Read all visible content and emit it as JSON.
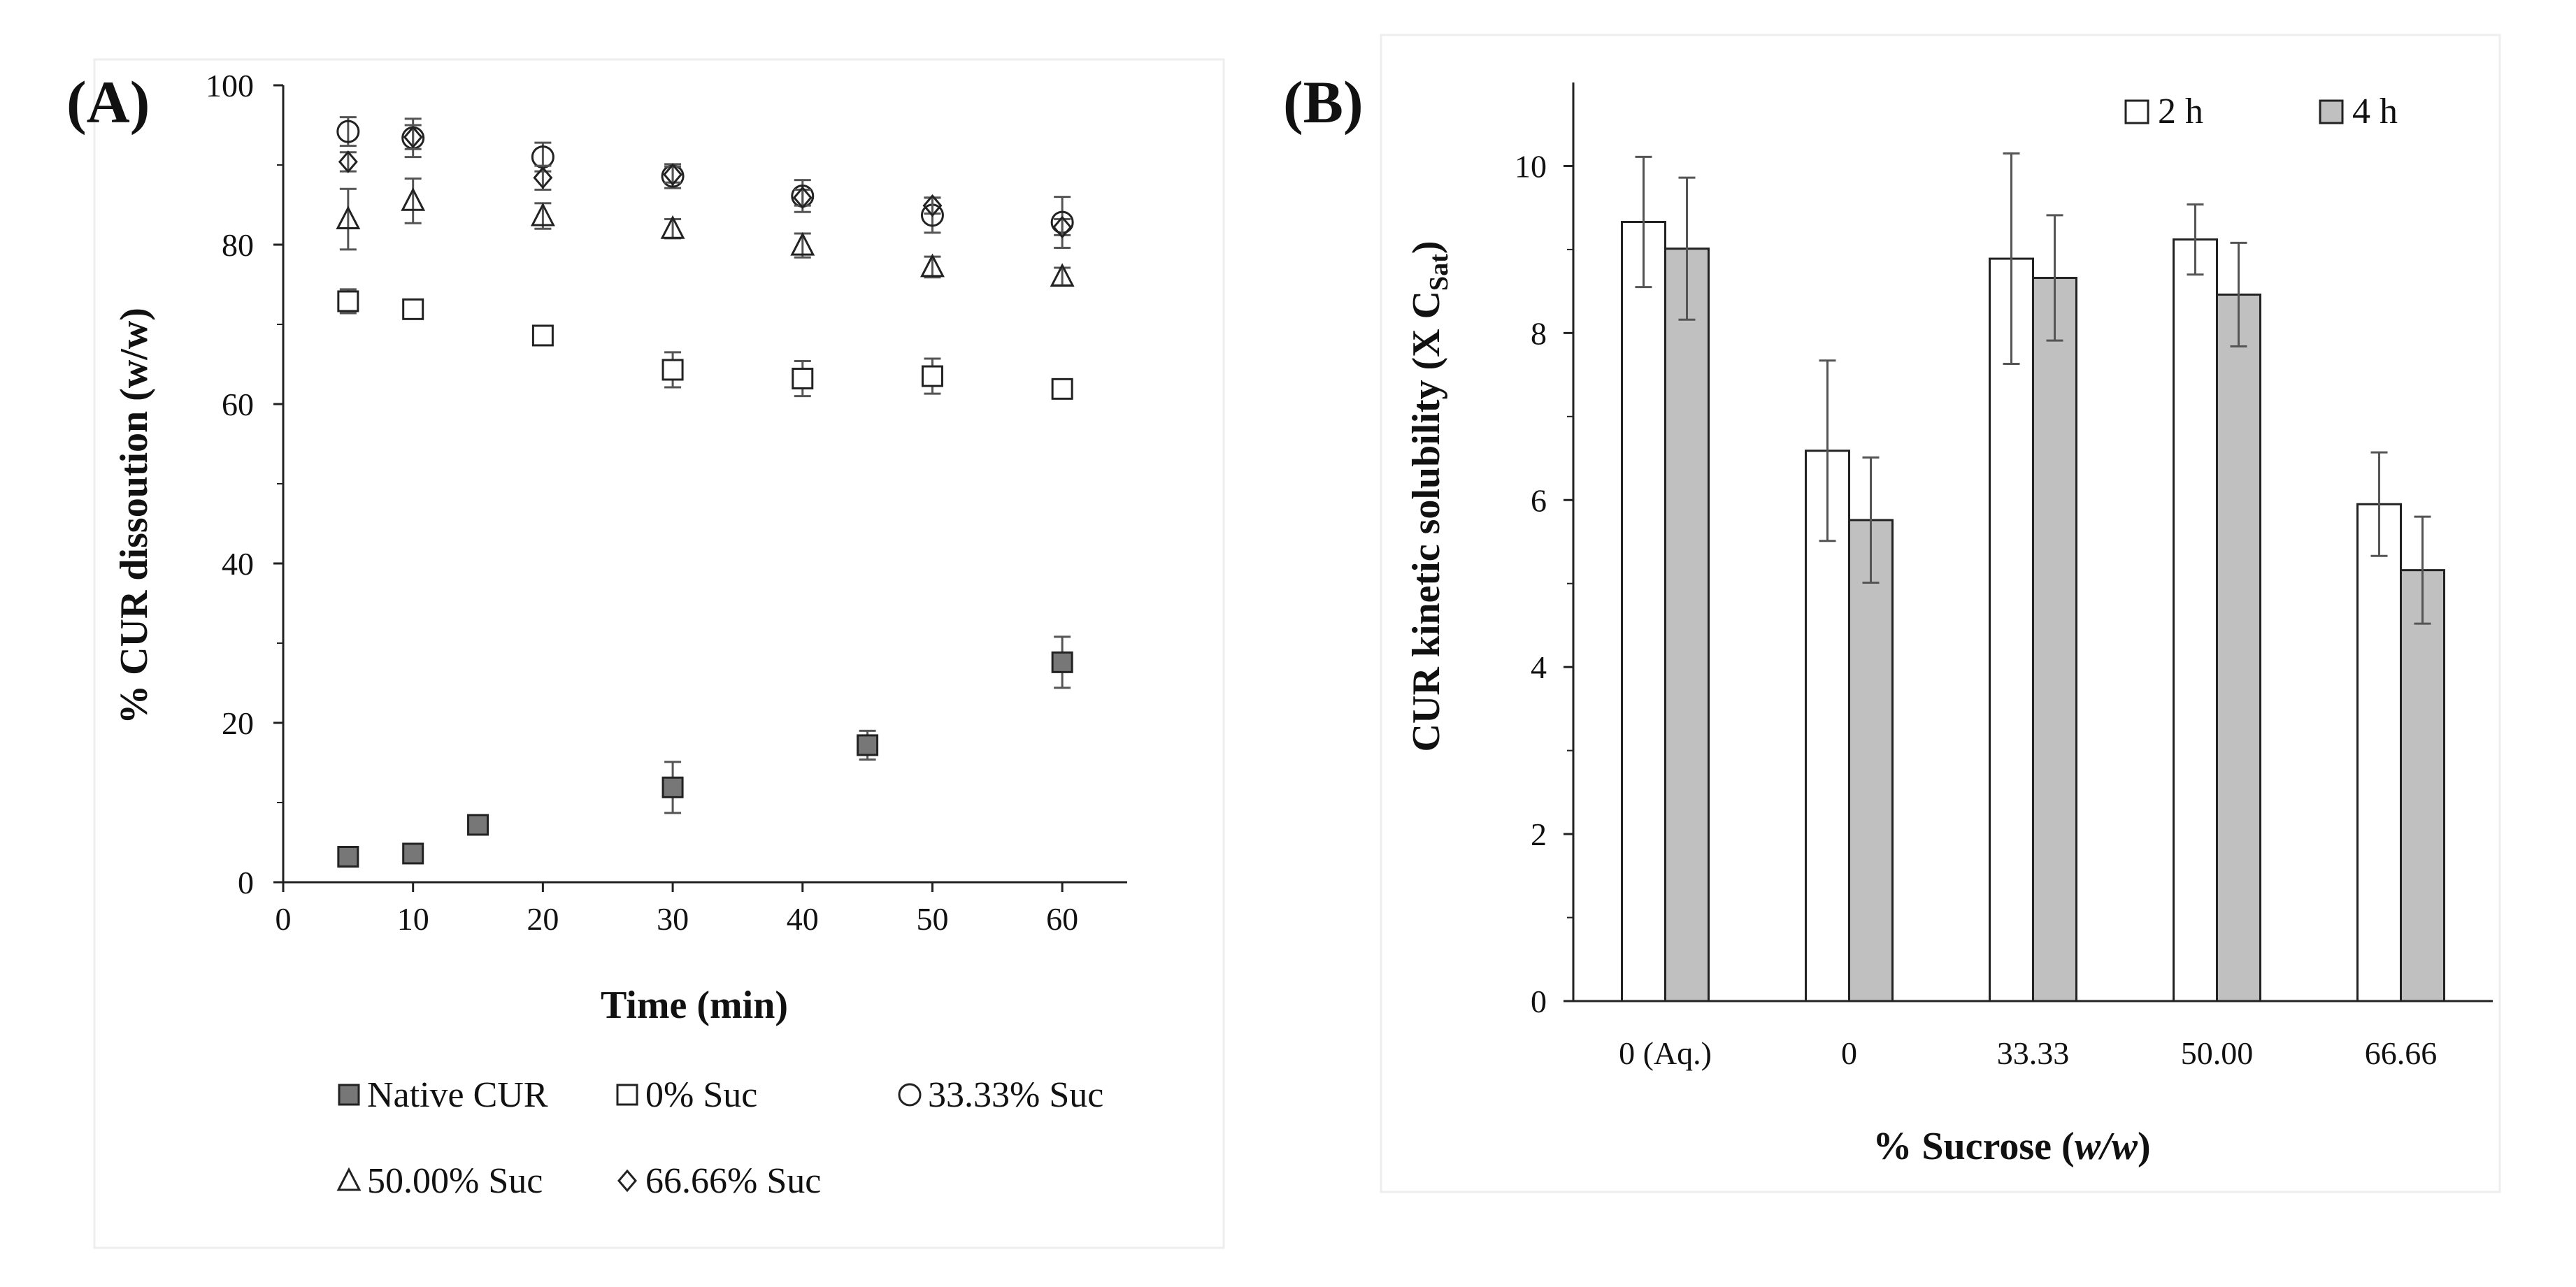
{
  "chart_data": [
    {
      "panel": "(A)",
      "type": "scatter",
      "xlabel": "Time (min)",
      "ylabel": "% CUR dissoution (w/w)",
      "xlim": [
        0,
        65
      ],
      "ylim": [
        0,
        100
      ],
      "xticks": [
        0,
        10,
        20,
        30,
        40,
        50,
        60
      ],
      "yticks": [
        0,
        20,
        40,
        60,
        80,
        100
      ],
      "legend_position": "bottom",
      "series": [
        {
          "name": "Native CUR",
          "marker": "square-filled",
          "x": [
            5,
            10,
            15,
            30,
            45,
            60
          ],
          "y": [
            3.2,
            3.6,
            7.2,
            11.9,
            17.2,
            27.6
          ],
          "err": [
            0.5,
            0.5,
            0.8,
            3.2,
            1.8,
            3.2
          ]
        },
        {
          "name": "0% Suc",
          "marker": "square-open",
          "x": [
            5,
            10,
            20,
            30,
            40,
            50,
            60
          ],
          "y": [
            72.9,
            71.9,
            68.6,
            64.3,
            63.2,
            63.5,
            61.9
          ],
          "err": [
            1.5,
            1.2,
            1.2,
            2.2,
            2.2,
            2.2,
            1.2
          ]
        },
        {
          "name": "33.33% Suc",
          "marker": "circle-open",
          "x": [
            5,
            10,
            20,
            30,
            40,
            50,
            60
          ],
          "y": [
            94.2,
            93.4,
            91.0,
            88.6,
            86.1,
            83.7,
            82.8
          ],
          "err": [
            1.8,
            2.4,
            1.8,
            1.5,
            2.0,
            2.2,
            3.2
          ]
        },
        {
          "name": "50.00% Suc",
          "marker": "triangle-open",
          "x": [
            5,
            10,
            20,
            30,
            40,
            50,
            60
          ],
          "y": [
            83.2,
            85.5,
            83.6,
            82.0,
            79.9,
            77.2,
            76.0
          ],
          "err": [
            3.8,
            2.8,
            1.6,
            1.2,
            1.5,
            1.3,
            1.1
          ]
        },
        {
          "name": "66.66% Suc",
          "marker": "diamond-open",
          "x": [
            5,
            10,
            20,
            30,
            40,
            50,
            60
          ],
          "y": [
            90.4,
            93.5,
            88.4,
            88.8,
            85.9,
            84.9,
            82.2
          ],
          "err": [
            1.2,
            1.5,
            1.5,
            1.0,
            1.0,
            1.0,
            1.0
          ]
        }
      ]
    },
    {
      "panel": "(B)",
      "type": "bar",
      "xlabel_main": "% Sucrose (",
      "xlabel_italic": "w/w",
      "xlabel_end": ")",
      "ylabel_main": "CUR kinetic solubility (X C",
      "ylabel_sub": "Sat",
      "ylabel_end": ")",
      "categories": [
        "0 (Aq.)",
        "0",
        "33.33",
        "50.00",
        "66.66"
      ],
      "ylim": [
        0,
        11
      ],
      "yticks": [
        0,
        2,
        4,
        6,
        8,
        10
      ],
      "legend_position": "top-right",
      "series": [
        {
          "name": "2 h",
          "color": "#ffffff",
          "values": [
            9.33,
            6.59,
            8.89,
            9.12,
            5.95
          ],
          "err": [
            0.78,
            1.08,
            1.26,
            0.42,
            0.62
          ]
        },
        {
          "name": "4 h",
          "color": "#c0c0c0",
          "values": [
            9.01,
            5.76,
            8.66,
            8.46,
            5.16
          ],
          "err": [
            0.85,
            0.75,
            0.75,
            0.62,
            0.64
          ]
        }
      ]
    }
  ]
}
